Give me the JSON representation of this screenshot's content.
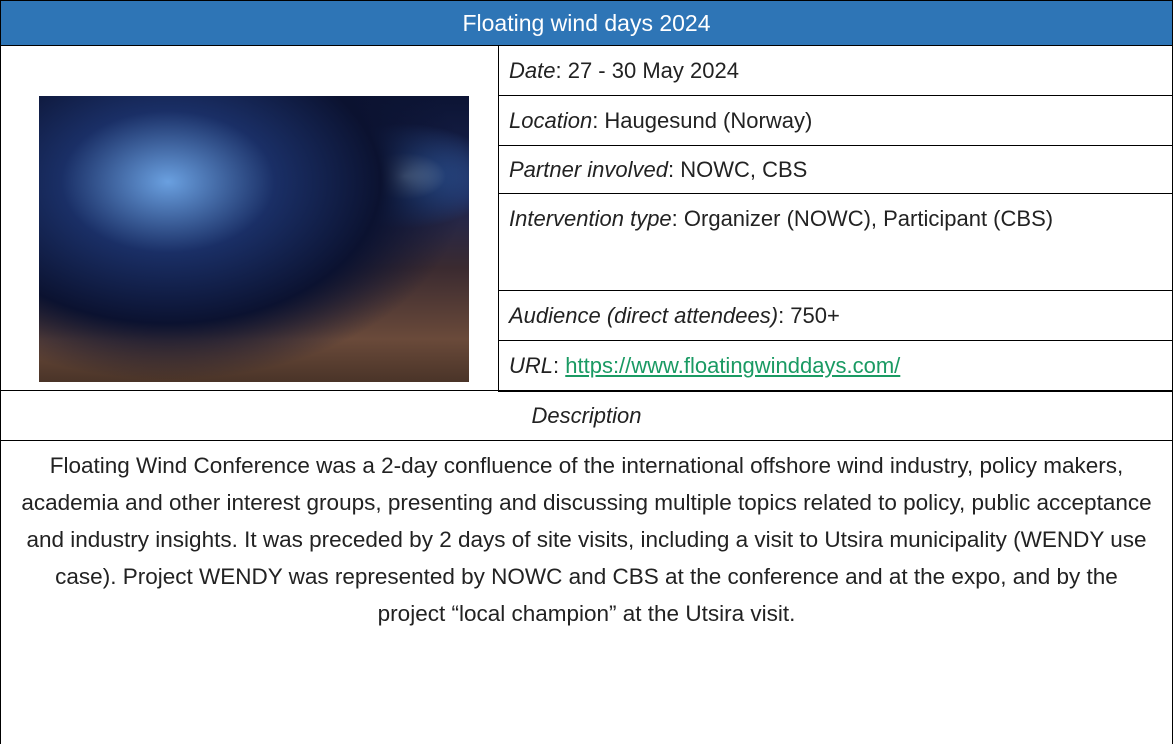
{
  "header": {
    "title": "Floating wind days 2024"
  },
  "details": [
    {
      "label": "Date",
      "value": ": 27 - 30 May 2024"
    },
    {
      "label": "Location",
      "value": ": Haugesund (Norway)"
    },
    {
      "label": "Partner involved",
      "value": ": NOWC, CBS"
    },
    {
      "label": "Intervention type",
      "value": ": Organizer (NOWC), Participant (CBS)"
    },
    {
      "label": "Audience (direct attendees)",
      "value": ": 750+"
    },
    {
      "label": "URL",
      "value": ": ",
      "link": "https://www.floatingwinddays.com/"
    }
  ],
  "description": {
    "heading": "Description",
    "text": "Floating Wind Conference was a 2-day confluence of the international offshore wind industry, policy makers, academia and other interest groups, presenting and discussing multiple topics related to policy, public acceptance and industry insights. It was preceded by 2 days of site visits, including a visit to Utsira municipality (WENDY use case). Project WENDY was represented by NOWC and CBS at the conference and at the expo, and by the project “local champion” at the Utsira visit."
  }
}
